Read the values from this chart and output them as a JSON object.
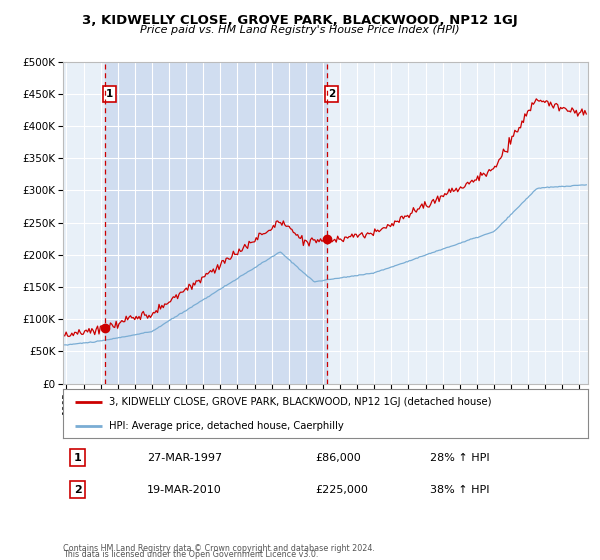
{
  "title": "3, KIDWELLY CLOSE, GROVE PARK, BLACKWOOD, NP12 1GJ",
  "subtitle": "Price paid vs. HM Land Registry's House Price Index (HPI)",
  "legend_line1": "3, KIDWELLY CLOSE, GROVE PARK, BLACKWOOD, NP12 1GJ (detached house)",
  "legend_line2": "HPI: Average price, detached house, Caerphilly",
  "annotation1_date": "27-MAR-1997",
  "annotation1_price": "£86,000",
  "annotation1_pct": "28% ↑ HPI",
  "annotation2_date": "19-MAR-2010",
  "annotation2_price": "£225,000",
  "annotation2_pct": "38% ↑ HPI",
  "footnote1": "Contains HM Land Registry data © Crown copyright and database right 2024.",
  "footnote2": "This data is licensed under the Open Government Licence v3.0.",
  "hpi_color": "#7aadd4",
  "price_color": "#cc0000",
  "fig_bg": "#ffffff",
  "plot_bg": "#e8f0f8",
  "span_bg": "#d0ddf0",
  "grid_color": "#ffffff",
  "vline_color": "#cc0000",
  "marker1_x": 1997.23,
  "marker1_y": 86000,
  "marker2_x": 2010.21,
  "marker2_y": 225000,
  "ylim": [
    0,
    500000
  ],
  "xlim_start": 1994.8,
  "xlim_end": 2025.5,
  "xticks": [
    1995,
    1996,
    1997,
    1998,
    1999,
    2000,
    2001,
    2002,
    2003,
    2004,
    2005,
    2006,
    2007,
    2008,
    2009,
    2010,
    2011,
    2012,
    2013,
    2014,
    2015,
    2016,
    2017,
    2018,
    2019,
    2020,
    2021,
    2022,
    2023,
    2024,
    2025
  ],
  "yticks": [
    0,
    50000,
    100000,
    150000,
    200000,
    250000,
    300000,
    350000,
    400000,
    450000,
    500000
  ]
}
